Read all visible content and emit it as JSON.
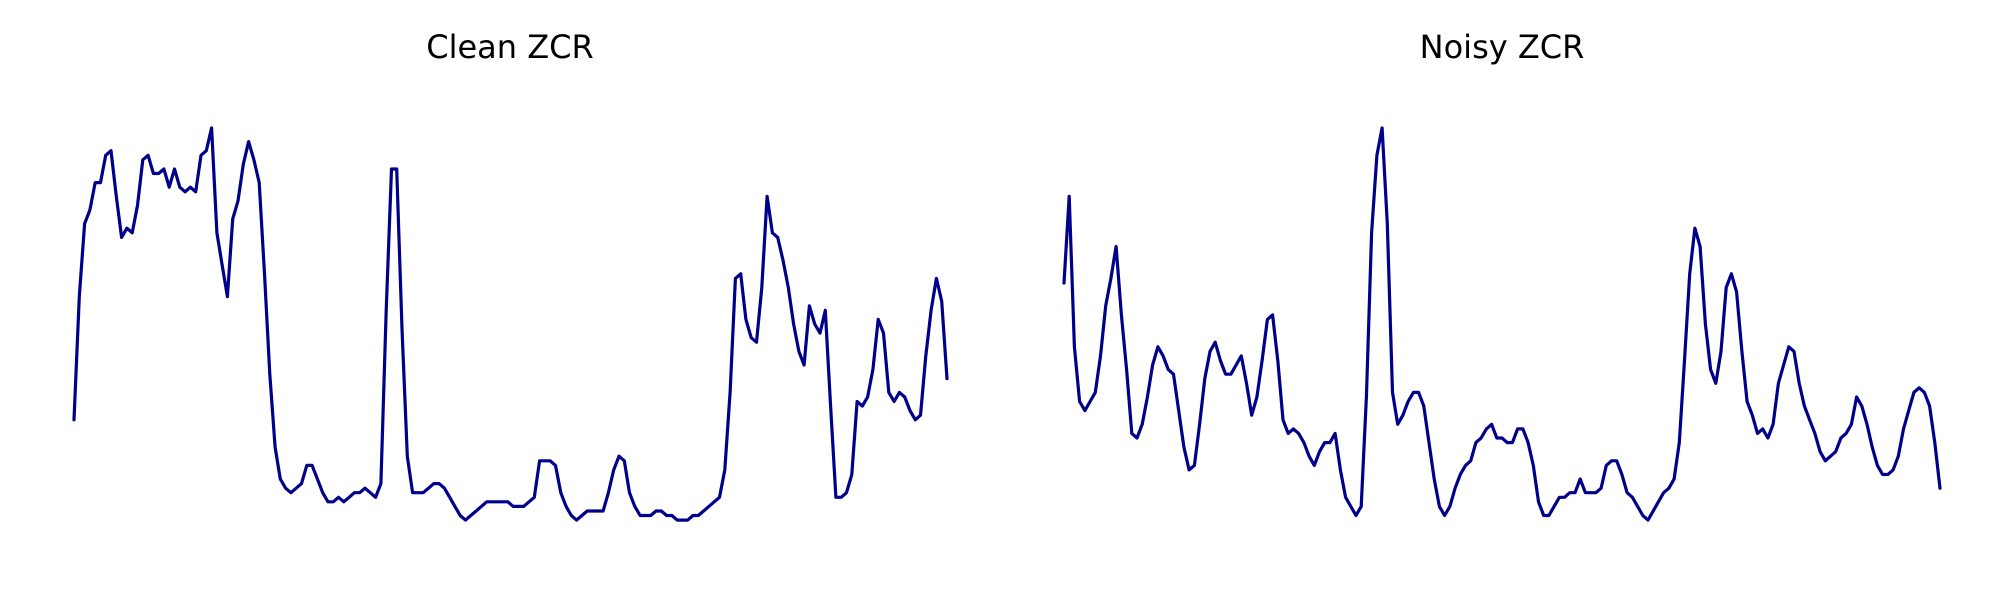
{
  "chart_data": [
    {
      "type": "line",
      "title": "Clean ZCR",
      "xlabel": "",
      "ylabel": "",
      "axes_visible": false,
      "grid": false,
      "legend": "none",
      "line_color": "#00008B",
      "x_range": [
        0,
        180
      ],
      "y_range": [
        0,
        1
      ],
      "series": [
        {
          "values": [
            0.29,
            0.56,
            0.72,
            0.75,
            0.81,
            0.81,
            0.87,
            0.88,
            0.78,
            0.69,
            0.71,
            0.7,
            0.76,
            0.86,
            0.87,
            0.83,
            0.83,
            0.84,
            0.8,
            0.84,
            0.8,
            0.79,
            0.8,
            0.79,
            0.87,
            0.88,
            0.93,
            0.7,
            0.63,
            0.56,
            0.73,
            0.77,
            0.85,
            0.9,
            0.86,
            0.81,
            0.61,
            0.39,
            0.23,
            0.16,
            0.14,
            0.13,
            0.14,
            0.15,
            0.19,
            0.19,
            0.16,
            0.13,
            0.11,
            0.11,
            0.12,
            0.11,
            0.12,
            0.13,
            0.13,
            0.14,
            0.13,
            0.12,
            0.15,
            0.53,
            0.84,
            0.84,
            0.49,
            0.21,
            0.13,
            0.13,
            0.13,
            0.14,
            0.15,
            0.15,
            0.14,
            0.12,
            0.1,
            0.08,
            0.07,
            0.08,
            0.09,
            0.1,
            0.11,
            0.11,
            0.11,
            0.11,
            0.11,
            0.1,
            0.1,
            0.1,
            0.11,
            0.12,
            0.2,
            0.2,
            0.2,
            0.19,
            0.13,
            0.1,
            0.08,
            0.07,
            0.08,
            0.09,
            0.09,
            0.09,
            0.09,
            0.13,
            0.18,
            0.21,
            0.2,
            0.13,
            0.1,
            0.08,
            0.08,
            0.08,
            0.09,
            0.09,
            0.08,
            0.08,
            0.07,
            0.07,
            0.07,
            0.08,
            0.08,
            0.09,
            0.1,
            0.11,
            0.12,
            0.18,
            0.35,
            0.6,
            0.61,
            0.51,
            0.47,
            0.46,
            0.58,
            0.78,
            0.7,
            0.69,
            0.64,
            0.58,
            0.5,
            0.44,
            0.41,
            0.54,
            0.5,
            0.48,
            0.53,
            0.32,
            0.12,
            0.12,
            0.13,
            0.17,
            0.33,
            0.32,
            0.34,
            0.4,
            0.51,
            0.48,
            0.35,
            0.33,
            0.35,
            0.34,
            0.31,
            0.29,
            0.3,
            0.43,
            0.53,
            0.6,
            0.55,
            0.38
          ]
        }
      ]
    },
    {
      "type": "line",
      "title": "Noisy ZCR",
      "xlabel": "",
      "ylabel": "",
      "axes_visible": false,
      "grid": false,
      "legend": "none",
      "line_color": "#00008B",
      "x_range": [
        0,
        180
      ],
      "y_range": [
        0,
        1
      ],
      "series": [
        {
          "values": [
            0.59,
            0.78,
            0.45,
            0.33,
            0.31,
            0.33,
            0.35,
            0.43,
            0.54,
            0.6,
            0.67,
            0.52,
            0.4,
            0.26,
            0.25,
            0.28,
            0.34,
            0.41,
            0.45,
            0.43,
            0.4,
            0.39,
            0.31,
            0.23,
            0.18,
            0.19,
            0.28,
            0.38,
            0.44,
            0.46,
            0.42,
            0.39,
            0.39,
            0.41,
            0.43,
            0.37,
            0.3,
            0.34,
            0.42,
            0.51,
            0.52,
            0.42,
            0.29,
            0.26,
            0.27,
            0.26,
            0.24,
            0.21,
            0.19,
            0.22,
            0.24,
            0.24,
            0.26,
            0.18,
            0.12,
            0.1,
            0.08,
            0.1,
            0.34,
            0.7,
            0.87,
            0.93,
            0.72,
            0.35,
            0.28,
            0.3,
            0.33,
            0.35,
            0.35,
            0.32,
            0.24,
            0.16,
            0.1,
            0.08,
            0.1,
            0.14,
            0.17,
            0.19,
            0.2,
            0.24,
            0.25,
            0.27,
            0.28,
            0.25,
            0.25,
            0.24,
            0.24,
            0.27,
            0.27,
            0.24,
            0.19,
            0.11,
            0.08,
            0.08,
            0.1,
            0.12,
            0.12,
            0.13,
            0.13,
            0.16,
            0.13,
            0.13,
            0.13,
            0.14,
            0.19,
            0.2,
            0.2,
            0.17,
            0.13,
            0.12,
            0.1,
            0.08,
            0.07,
            0.09,
            0.11,
            0.13,
            0.14,
            0.16,
            0.24,
            0.42,
            0.61,
            0.71,
            0.67,
            0.5,
            0.4,
            0.37,
            0.44,
            0.58,
            0.61,
            0.57,
            0.44,
            0.33,
            0.3,
            0.26,
            0.27,
            0.25,
            0.28,
            0.37,
            0.41,
            0.45,
            0.44,
            0.37,
            0.32,
            0.29,
            0.26,
            0.22,
            0.2,
            0.21,
            0.22,
            0.25,
            0.26,
            0.28,
            0.34,
            0.32,
            0.28,
            0.23,
            0.19,
            0.17,
            0.17,
            0.18,
            0.21,
            0.27,
            0.31,
            0.35,
            0.36,
            0.35,
            0.32,
            0.24,
            0.14
          ]
        }
      ]
    }
  ]
}
